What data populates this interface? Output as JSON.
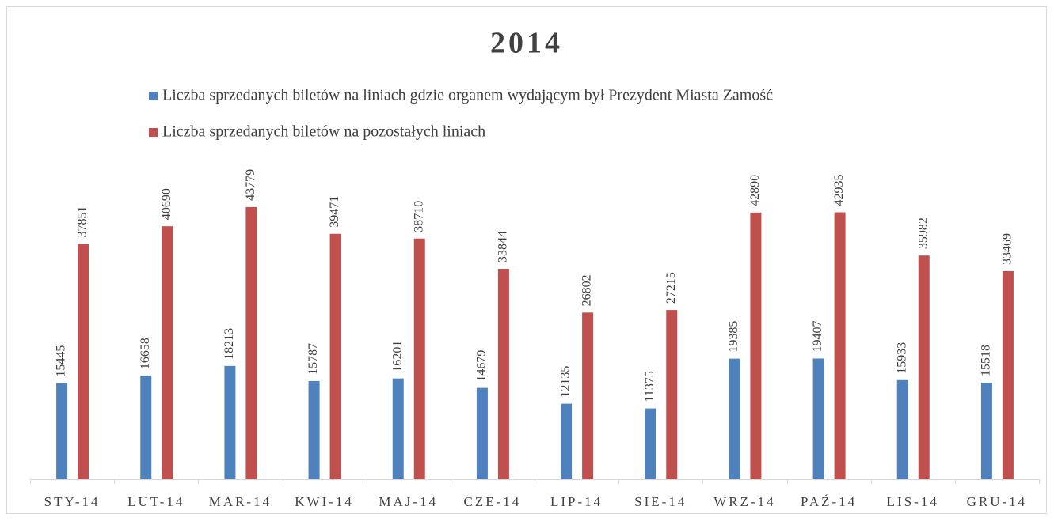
{
  "chart_data": {
    "type": "bar",
    "title": "2014",
    "categories": [
      "STY-14",
      "LUT-14",
      "MAR-14",
      "KWI-14",
      "MAJ-14",
      "CZE-14",
      "LIP-14",
      "SIE-14",
      "WRZ-14",
      "PAŹ-14",
      "LIS-14",
      "GRU-14"
    ],
    "series": [
      {
        "name": "Liczba sprzedanych biletów na liniach gdzie organem wydającym był Prezydent Miasta Zamość",
        "color": "#4f81bd",
        "values": [
          15445,
          16658,
          18213,
          15787,
          16201,
          14679,
          12135,
          11375,
          19385,
          19407,
          15933,
          15518
        ]
      },
      {
        "name": "Liczba sprzedanych biletów na pozostałych liniach",
        "color": "#c0504d",
        "values": [
          37851,
          40690,
          43779,
          39471,
          38710,
          33844,
          26802,
          27215,
          42890,
          42935,
          35982,
          33469
        ]
      }
    ],
    "ylim": [
      0,
      50000
    ],
    "legend": "top"
  }
}
